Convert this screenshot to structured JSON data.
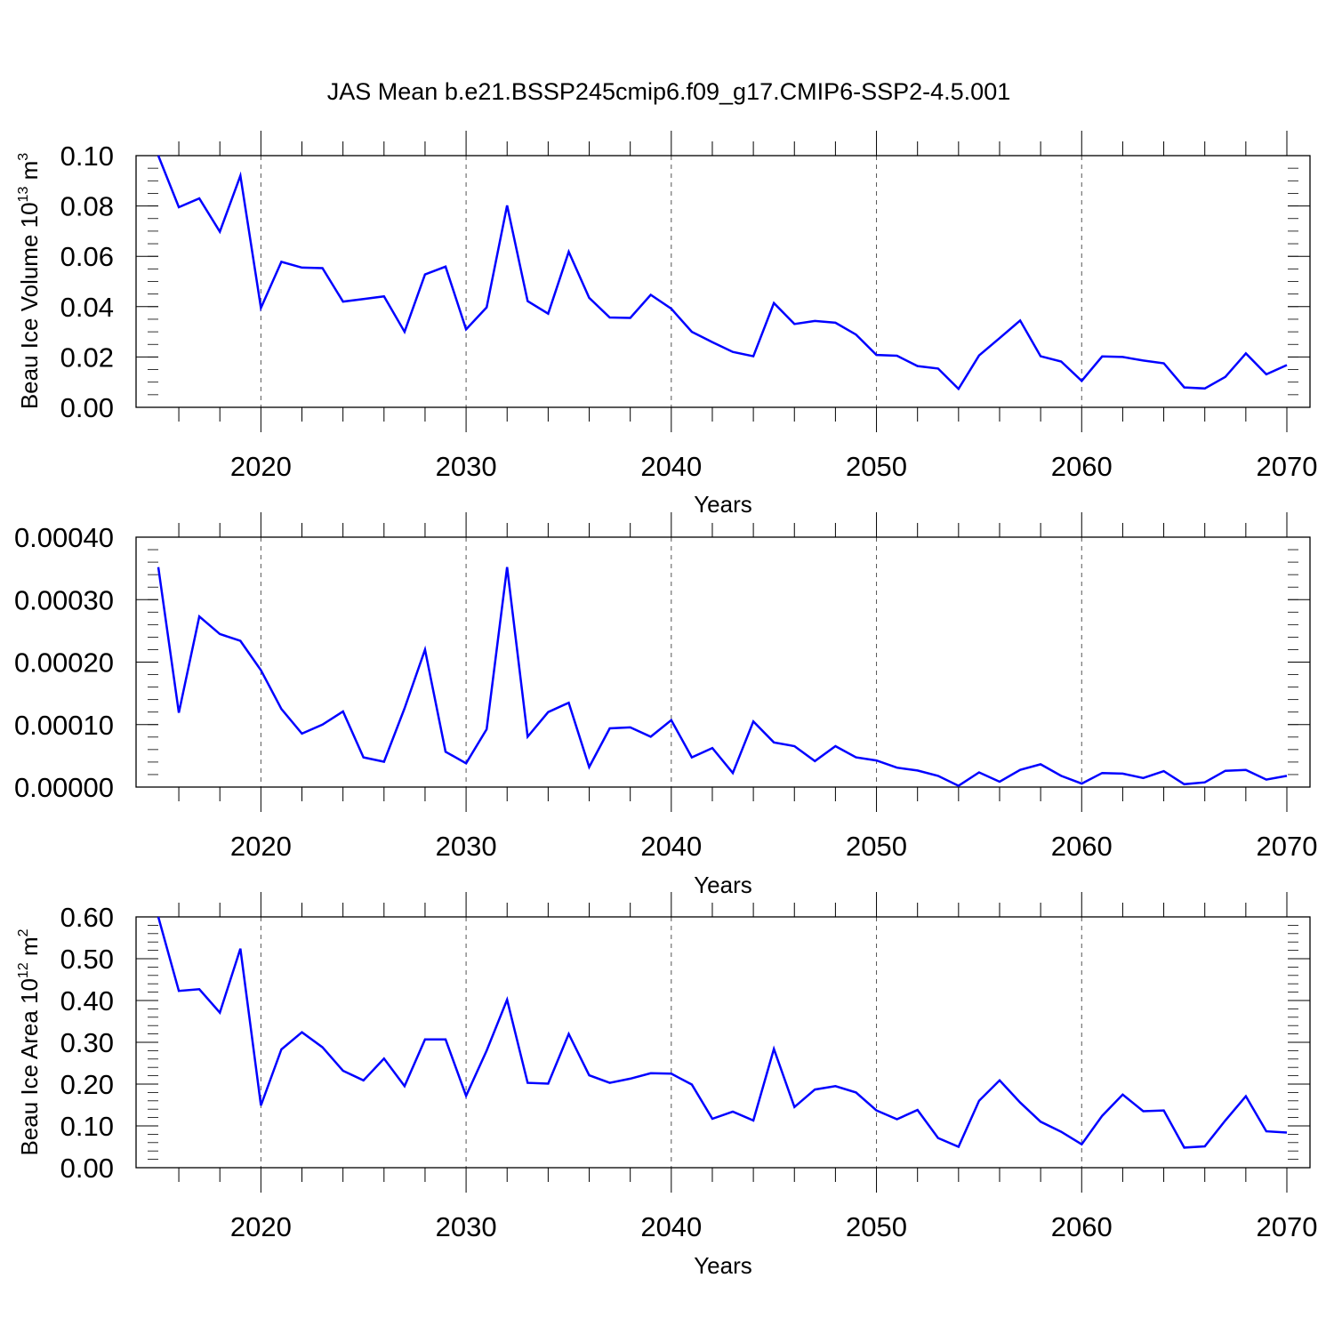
{
  "figure": {
    "title": "JAS Mean b.e21.BSSP245cmip6.f09_g17.CMIP6-SSP2-4.5.001",
    "line_color": "#0000ff"
  },
  "chart_data": [
    {
      "type": "line",
      "title": "",
      "xlabel": "Years",
      "ylabel_main": "Beau Ice Volume 10",
      "ylabel_sup1": "13",
      "ylabel_mid": " m",
      "ylabel_sup2": "3",
      "xlim": [
        2015,
        2070
      ],
      "ylim": [
        0,
        0.1
      ],
      "yticks": [
        "0.00",
        "0.02",
        "0.04",
        "0.06",
        "0.08",
        "0.10"
      ],
      "xticks": [
        "2020",
        "2030",
        "2040",
        "2050",
        "2060",
        "2070"
      ],
      "grid_x": [
        2020,
        2030,
        2040,
        2050,
        2060
      ],
      "x": [
        2015,
        2016,
        2017,
        2018,
        2019,
        2020,
        2021,
        2022,
        2023,
        2024,
        2025,
        2026,
        2027,
        2028,
        2029,
        2030,
        2031,
        2032,
        2033,
        2034,
        2035,
        2036,
        2037,
        2038,
        2039,
        2040,
        2041,
        2042,
        2043,
        2044,
        2045,
        2046,
        2047,
        2048,
        2049,
        2050,
        2051,
        2052,
        2053,
        2054,
        2055,
        2056,
        2057,
        2058,
        2059,
        2060,
        2061,
        2062,
        2063,
        2064,
        2065,
        2066,
        2067,
        2068,
        2069,
        2070
      ],
      "series": [
        {
          "values": [
            0.1,
            0.0795,
            0.083,
            0.0698,
            0.092,
            0.0395,
            0.0578,
            0.0555,
            0.0553,
            0.042,
            0.043,
            0.0441,
            0.03,
            0.0528,
            0.0559,
            0.031,
            0.0397,
            0.0802,
            0.0422,
            0.0372,
            0.0618,
            0.0435,
            0.0357,
            0.0355,
            0.0447,
            0.0392,
            0.03,
            0.0259,
            0.022,
            0.0203,
            0.0414,
            0.0331,
            0.0343,
            0.0336,
            0.0289,
            0.0208,
            0.0205,
            0.0164,
            0.0154,
            0.0073,
            0.0206,
            0.0275,
            0.0345,
            0.0203,
            0.0182,
            0.0105,
            0.0202,
            0.02,
            0.0186,
            0.0175,
            0.0079,
            0.0075,
            0.0121,
            0.0214,
            0.0131,
            0.0168
          ]
        }
      ]
    },
    {
      "type": "line",
      "title": "",
      "xlabel": "Years",
      "xlim": [
        2015,
        2070
      ],
      "ylim": [
        0,
        0.0004
      ],
      "yticks": [
        "0.00000",
        "0.00010",
        "0.00020",
        "0.00030",
        "0.00040"
      ],
      "xticks": [
        "2020",
        "2030",
        "2040",
        "2050",
        "2060",
        "2070"
      ],
      "grid_x": [
        2020,
        2030,
        2040,
        2050,
        2060
      ],
      "x": [
        2015,
        2016,
        2017,
        2018,
        2019,
        2020,
        2021,
        2022,
        2023,
        2024,
        2025,
        2026,
        2027,
        2028,
        2029,
        2030,
        2031,
        2032,
        2033,
        2034,
        2035,
        2036,
        2037,
        2038,
        2039,
        2040,
        2041,
        2042,
        2043,
        2044,
        2045,
        2046,
        2047,
        2048,
        2049,
        2050,
        2051,
        2052,
        2053,
        2054,
        2055,
        2056,
        2057,
        2058,
        2059,
        2060,
        2061,
        2062,
        2063,
        2064,
        2065,
        2066,
        2067,
        2068,
        2069,
        2070
      ],
      "series": [
        {
          "values": [
            0.000352,
            0.000119,
            0.000273,
            0.000245,
            0.000234,
            0.000187,
            0.000125,
            8.55e-05,
            0.0001,
            0.000121,
            4.75e-05,
            4.05e-05,
            0.000126,
            0.00022,
            5.65e-05,
            3.8e-05,
            9.25e-05,
            0.000352,
            8.05e-05,
            0.00012,
            0.000135,
            3.2e-05,
            9.4e-05,
            9.55e-05,
            8.05e-05,
            0.000107,
            4.75e-05,
            6.25e-05,
            2.25e-05,
            0.000105,
            7.15e-05,
            6.55e-05,
            4.15e-05,
            6.55e-05,
            4.75e-05,
            4.25e-05,
            3.1e-05,
            2.65e-05,
            1.8e-05,
            2e-06,
            2.35e-05,
            8.5e-06,
            2.75e-05,
            3.65e-05,
            1.8e-05,
            5.5e-06,
            2.25e-05,
            2.15e-05,
            1.45e-05,
            2.55e-05,
            4.5e-06,
            7.5e-06,
            2.6e-05,
            2.75e-05,
            1.2e-05,
            1.8e-05
          ]
        }
      ]
    },
    {
      "type": "line",
      "title": "",
      "xlabel": "Years",
      "ylabel_main": "Beau Ice Area 10",
      "ylabel_sup1": "12",
      "ylabel_mid": " m",
      "ylabel_sup2": "2",
      "xlim": [
        2015,
        2070
      ],
      "ylim": [
        0,
        0.6
      ],
      "yticks": [
        "0.00",
        "0.10",
        "0.20",
        "0.30",
        "0.40",
        "0.50",
        "0.60"
      ],
      "xticks": [
        "2020",
        "2030",
        "2040",
        "2050",
        "2060",
        "2070"
      ],
      "grid_x": [
        2020,
        2030,
        2040,
        2050,
        2060
      ],
      "x": [
        2015,
        2016,
        2017,
        2018,
        2019,
        2020,
        2021,
        2022,
        2023,
        2024,
        2025,
        2026,
        2027,
        2028,
        2029,
        2030,
        2031,
        2032,
        2033,
        2034,
        2035,
        2036,
        2037,
        2038,
        2039,
        2040,
        2041,
        2042,
        2043,
        2044,
        2045,
        2046,
        2047,
        2048,
        2049,
        2050,
        2051,
        2052,
        2053,
        2054,
        2055,
        2056,
        2057,
        2058,
        2059,
        2060,
        2061,
        2062,
        2063,
        2064,
        2065,
        2066,
        2067,
        2068,
        2069,
        2070
      ],
      "series": [
        {
          "values": [
            0.6,
            0.423,
            0.427,
            0.371,
            0.524,
            0.149,
            0.283,
            0.324,
            0.288,
            0.232,
            0.209,
            0.261,
            0.195,
            0.307,
            0.307,
            0.172,
            0.28,
            0.402,
            0.203,
            0.201,
            0.32,
            0.221,
            0.203,
            0.213,
            0.226,
            0.225,
            0.199,
            0.117,
            0.134,
            0.113,
            0.284,
            0.145,
            0.187,
            0.195,
            0.18,
            0.137,
            0.116,
            0.138,
            0.071,
            0.05,
            0.16,
            0.209,
            0.156,
            0.11,
            0.086,
            0.056,
            0.124,
            0.175,
            0.135,
            0.137,
            0.048,
            0.051,
            0.113,
            0.171,
            0.087,
            0.084
          ]
        }
      ]
    }
  ]
}
